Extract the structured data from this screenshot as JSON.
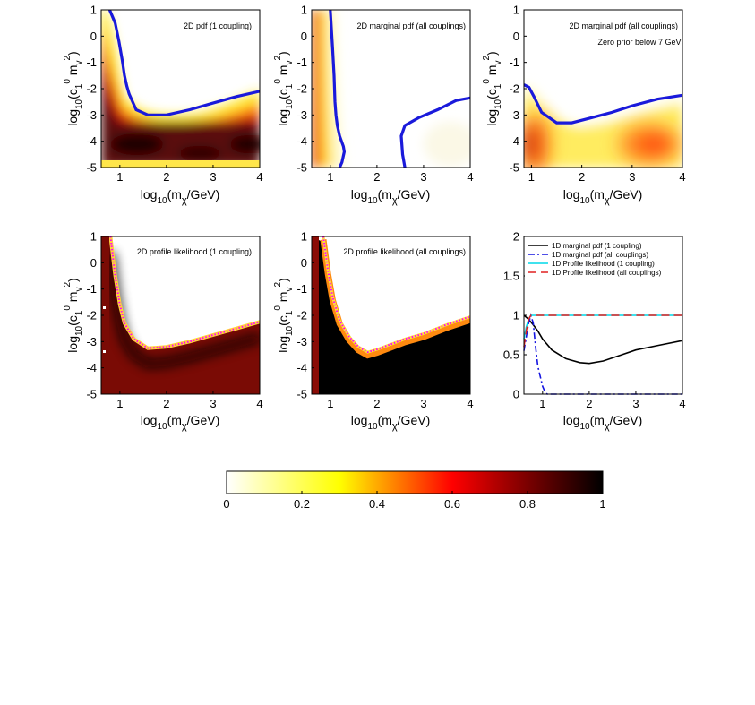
{
  "figure": {
    "colormap": "hot (reversed): 0 = white, 1 = black",
    "colors": {
      "contour": "#1a1adb",
      "profile_edge": "#ff00ff"
    },
    "panels": [
      {
        "id": "p1",
        "annotation": "2D pdf (1 coupling)",
        "annotation2": "",
        "xlabel": "log10(mχ/GeV)",
        "ylabel": "log10(c1⁰ mv²)"
      },
      {
        "id": "p2",
        "annotation": "2D marginal pdf (all couplings)",
        "annotation2": "",
        "xlabel": "log10(mχ/GeV)",
        "ylabel": "log10(c1⁰ mv²)"
      },
      {
        "id": "p3",
        "annotation": "2D marginal pdf (all couplings)",
        "annotation2": "Zero prior below 7 GeV",
        "xlabel": "log10(mχ/GeV)",
        "ylabel": "log10(c1⁰ mv²)"
      },
      {
        "id": "p4",
        "annotation": "2D profile likelihood (1 coupling)",
        "annotation2": "",
        "xlabel": "log10(mχ/GeV)",
        "ylabel": "log10(c1⁰ mv²)"
      },
      {
        "id": "p5",
        "annotation": "2D profile likelihood (all couplings)",
        "annotation2": "",
        "xlabel": "log10(mχ/GeV)",
        "ylabel": "log10(c1⁰ mv²)"
      },
      {
        "id": "p6",
        "annotation": "",
        "annotation2": "",
        "xlabel": "log10(mχ/GeV)",
        "ylabel": ""
      }
    ],
    "colorbar_ticks": [
      "0",
      "0.2",
      "0.4",
      "0.6",
      "0.8",
      "1"
    ]
  },
  "chart_data": [
    {
      "type": "heatmap",
      "panel": "p1",
      "title": "2D pdf (1 coupling)",
      "xlabel": "log10(mχ/GeV)",
      "ylabel": "log10(c1⁰ mv²)",
      "xlim": [
        0.6,
        4
      ],
      "ylim": [
        -5,
        1
      ],
      "xticks": [
        1,
        2,
        3,
        4
      ],
      "yticks": [
        1,
        0,
        -1,
        -2,
        -3,
        -4,
        -5
      ],
      "contour": {
        "x": [
          0.78,
          0.9,
          0.98,
          1.05,
          1.1,
          1.15,
          1.2,
          1.35,
          1.6,
          2.0,
          2.5,
          3.0,
          3.5,
          4.0
        ],
        "y": [
          1.0,
          0.5,
          -0.2,
          -0.9,
          -1.5,
          -1.9,
          -2.2,
          -2.8,
          -3.0,
          -3.0,
          -2.8,
          -2.55,
          -2.3,
          -2.1
        ]
      }
    },
    {
      "type": "heatmap",
      "panel": "p2",
      "title": "2D marginal pdf (all couplings)",
      "xlabel": "log10(mχ/GeV)",
      "ylabel": "log10(c1⁰ mv²)",
      "xlim": [
        0.6,
        4
      ],
      "ylim": [
        -5,
        1
      ],
      "xticks": [
        1,
        2,
        3,
        4
      ],
      "yticks": [
        1,
        0,
        -1,
        -2,
        -3,
        -4,
        -5
      ],
      "contour_left": {
        "x": [
          1.0,
          1.05,
          1.08,
          1.1,
          1.12,
          1.15,
          1.2,
          1.28,
          1.3,
          1.25,
          1.2
        ],
        "y": [
          1.0,
          -0.5,
          -1.5,
          -2.5,
          -3.0,
          -3.4,
          -3.8,
          -4.2,
          -4.4,
          -4.8,
          -5.0
        ]
      },
      "contour_right": {
        "x": [
          2.6,
          2.55,
          2.52,
          2.6,
          2.9,
          3.3,
          3.7,
          4.0
        ],
        "y": [
          -5.0,
          -4.5,
          -3.8,
          -3.4,
          -3.1,
          -2.8,
          -2.45,
          -2.35
        ]
      }
    },
    {
      "type": "heatmap",
      "panel": "p3",
      "title": "2D marginal pdf (all couplings)",
      "subtitle": "Zero prior below 7 GeV",
      "xlabel": "log10(mχ/GeV)",
      "ylabel": "log10(c1⁰ mv²)",
      "xlim": [
        0.85,
        4
      ],
      "ylim": [
        -5,
        1
      ],
      "xticks": [
        1,
        2,
        3,
        4
      ],
      "yticks": [
        1,
        0,
        -1,
        -2,
        -3,
        -4,
        -5
      ],
      "contour": {
        "x": [
          0.85,
          0.95,
          1.05,
          1.2,
          1.5,
          1.8,
          2.2,
          2.6,
          3.0,
          3.5,
          4.0
        ],
        "y": [
          -1.85,
          -1.95,
          -2.3,
          -2.9,
          -3.3,
          -3.3,
          -3.1,
          -2.9,
          -2.65,
          -2.4,
          -2.25
        ]
      }
    },
    {
      "type": "heatmap",
      "panel": "p4",
      "title": "2D profile likelihood (1 coupling)",
      "xlabel": "log10(mχ/GeV)",
      "ylabel": "log10(c1⁰ mv²)",
      "xlim": [
        0.6,
        4
      ],
      "ylim": [
        -5,
        1
      ],
      "xticks": [
        1,
        2,
        3,
        4
      ],
      "yticks": [
        1,
        0,
        -1,
        -2,
        -3,
        -4,
        -5
      ],
      "boundary": {
        "x": [
          0.8,
          0.9,
          1.0,
          1.1,
          1.3,
          1.6,
          2.0,
          2.5,
          3.0,
          3.5,
          4.0
        ],
        "y": [
          1.0,
          -0.5,
          -1.6,
          -2.3,
          -2.9,
          -3.25,
          -3.2,
          -3.0,
          -2.75,
          -2.5,
          -2.25
        ]
      }
    },
    {
      "type": "heatmap",
      "panel": "p5",
      "title": "2D profile likelihood (all couplings)",
      "xlabel": "log10(mχ/GeV)",
      "ylabel": "log10(c1⁰ mv²)",
      "xlim": [
        0.6,
        4
      ],
      "ylim": [
        -5,
        1
      ],
      "xticks": [
        1,
        2,
        3,
        4
      ],
      "yticks": [
        1,
        0,
        -1,
        -2,
        -3,
        -4,
        -5
      ],
      "boundary": {
        "x": [
          0.85,
          0.95,
          1.05,
          1.2,
          1.4,
          1.6,
          1.8,
          2.0,
          2.3,
          2.6,
          3.0,
          3.5,
          4.0
        ],
        "y": [
          1.0,
          -0.3,
          -1.3,
          -2.2,
          -2.8,
          -3.2,
          -3.4,
          -3.3,
          -3.1,
          -2.9,
          -2.7,
          -2.35,
          -2.05
        ]
      }
    },
    {
      "type": "line",
      "panel": "p6",
      "xlabel": "log10(mχ/GeV)",
      "ylabel": "",
      "xlim": [
        0.6,
        4
      ],
      "ylim": [
        0,
        2
      ],
      "xticks": [
        1,
        2,
        3,
        4
      ],
      "yticks": [
        0,
        0.5,
        1,
        1.5,
        2
      ],
      "series": [
        {
          "name": "1D marginal pdf (1 coupling)",
          "color": "#000000",
          "dash": "",
          "x": [
            0.6,
            0.7,
            0.8,
            0.9,
            1.0,
            1.2,
            1.5,
            1.8,
            2.0,
            2.3,
            2.7,
            3.0,
            3.5,
            4.0
          ],
          "y": [
            1.0,
            0.95,
            0.88,
            0.8,
            0.7,
            0.56,
            0.45,
            0.4,
            0.39,
            0.42,
            0.5,
            0.56,
            0.62,
            0.68
          ]
        },
        {
          "name": "1D marginal pdf (all couplings)",
          "color": "#1515e0",
          "dash": "7,3,2,3",
          "x": [
            0.6,
            0.7,
            0.75,
            0.8,
            0.85,
            0.9,
            1.0,
            1.05,
            1.1,
            1.2,
            1.6,
            2.0,
            3.0,
            4.0
          ],
          "y": [
            0.55,
            0.9,
            1.0,
            0.9,
            0.6,
            0.35,
            0.1,
            0.03,
            0.0,
            0.0,
            0.0,
            0.0,
            0.0,
            0.0
          ]
        },
        {
          "name": "1D Profile likelihood (1 coupling)",
          "color": "#00d8e8",
          "dash": "",
          "x": [
            0.6,
            0.65,
            0.7,
            0.75,
            0.8,
            1.0,
            2.0,
            3.0,
            4.0
          ],
          "y": [
            0.7,
            0.85,
            0.95,
            1.0,
            1.0,
            1.0,
            1.0,
            1.0,
            1.0
          ]
        },
        {
          "name": "1D Profile likelihood (all couplings)",
          "color": "#e02020",
          "dash": "9,5",
          "x": [
            0.6,
            0.65,
            0.7,
            0.75,
            0.8,
            1.0,
            2.0,
            3.0,
            4.0
          ],
          "y": [
            0.6,
            0.8,
            0.95,
            1.0,
            1.0,
            1.0,
            1.0,
            1.0,
            1.0
          ]
        }
      ]
    },
    {
      "type": "colorbar",
      "range": [
        0,
        1
      ],
      "ticks": [
        0,
        0.2,
        0.4,
        0.6,
        0.8,
        1
      ]
    }
  ]
}
